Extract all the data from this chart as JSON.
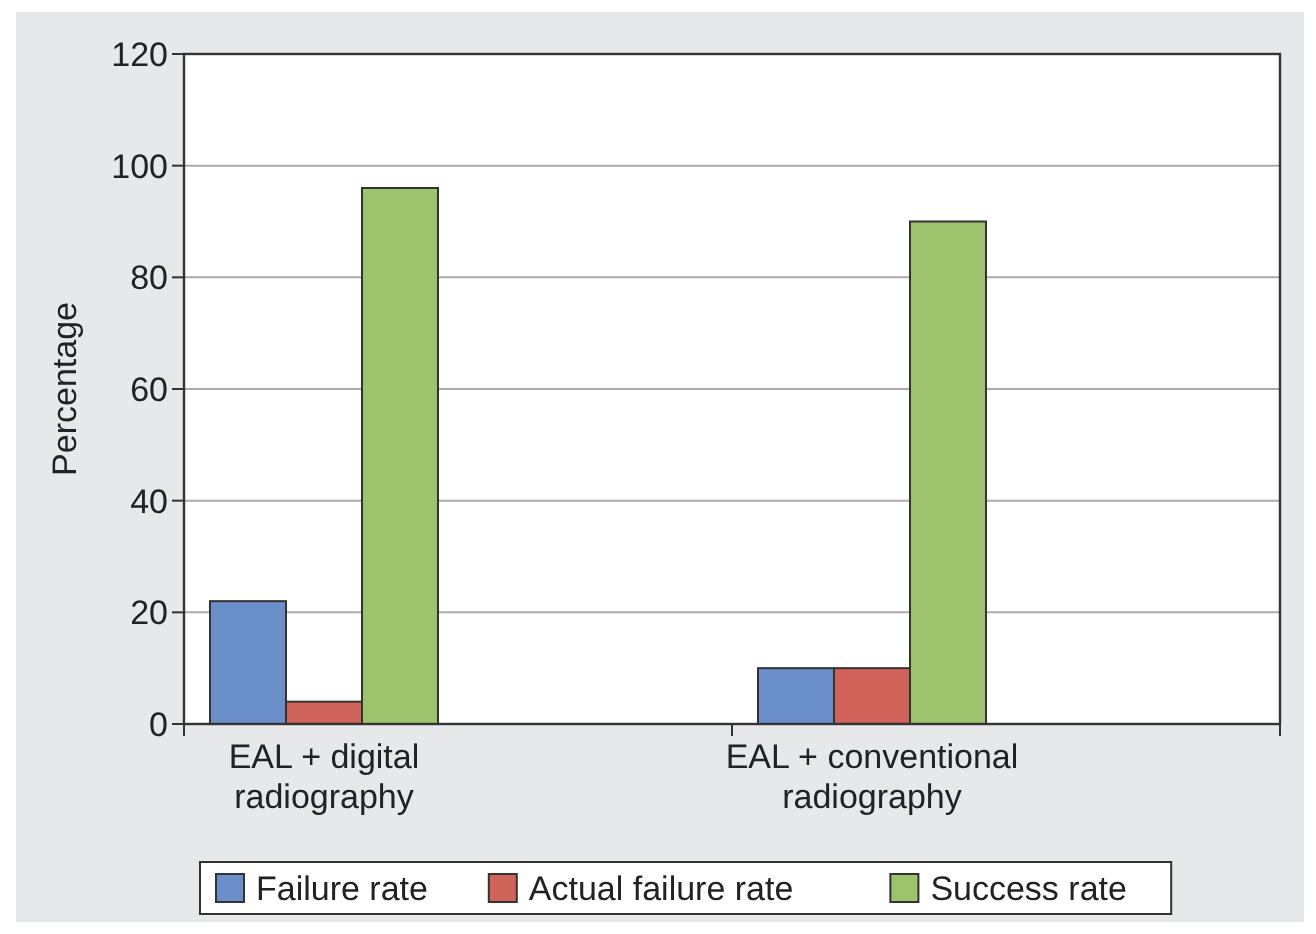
{
  "chart_data": {
    "type": "bar",
    "ylabel": "Percentage",
    "categories": [
      "EAL + digital\nradiography",
      "EAL + conventional\nradiography"
    ],
    "series": [
      {
        "name": "Failure rate",
        "color": "#6b8fca",
        "values": [
          22,
          10
        ]
      },
      {
        "name": "Actual failure rate",
        "color": "#cf6259",
        "values": [
          4,
          10
        ]
      },
      {
        "name": "Success rate",
        "color": "#9dc46c",
        "values": [
          96,
          90
        ]
      }
    ],
    "ylim": [
      0,
      120
    ],
    "yticks": [
      0,
      20,
      40,
      60,
      80,
      100,
      120
    ],
    "grid": "y",
    "legend": "bottom"
  }
}
